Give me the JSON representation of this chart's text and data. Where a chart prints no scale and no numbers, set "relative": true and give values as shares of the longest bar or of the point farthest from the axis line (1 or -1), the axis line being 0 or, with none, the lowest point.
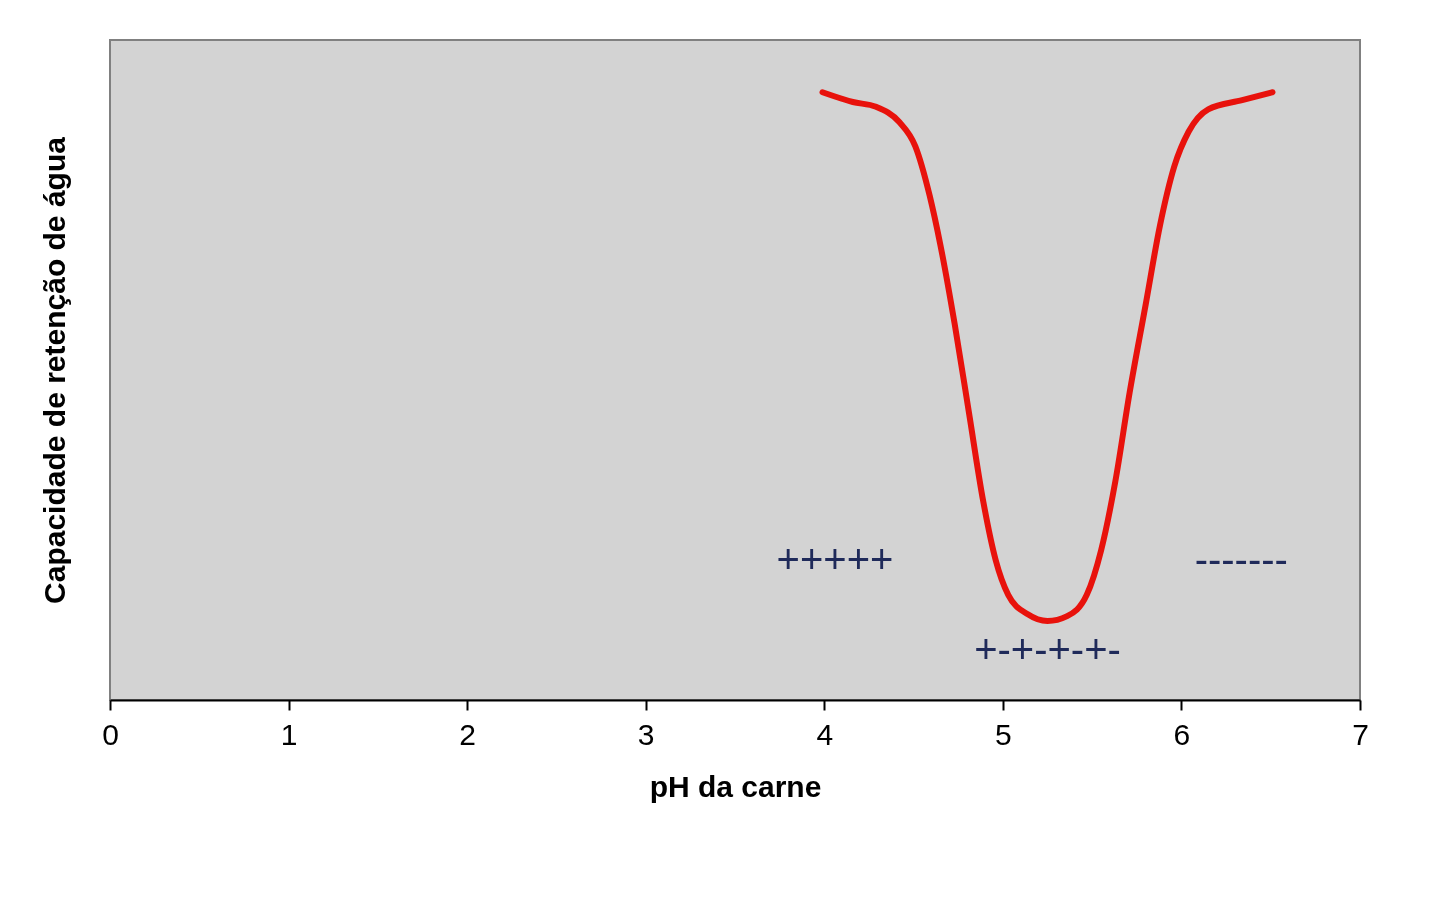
{
  "chart_data": {
    "type": "line",
    "xlabel": "pH da carne",
    "ylabel": "Capacidade de retenção de água",
    "relative": true,
    "xlim": [
      0,
      7
    ],
    "xticks": [
      0,
      1,
      2,
      3,
      4,
      5,
      6,
      7
    ],
    "grid": false,
    "marker": "none",
    "line_style": "solid",
    "series": [
      {
        "color": "#e8120c",
        "x": [
          3.99,
          4.16,
          4.29,
          4.42,
          4.51,
          4.59,
          4.65,
          4.73,
          4.81,
          4.89,
          4.96,
          5.03,
          5.14,
          5.25,
          5.36,
          5.47,
          5.55,
          5.63,
          5.71,
          5.8,
          5.88,
          5.96,
          6.04,
          6.15,
          6.34,
          6.51
        ],
        "values": [
          1.0,
          0.984,
          0.976,
          0.951,
          0.911,
          0.83,
          0.749,
          0.619,
          0.473,
          0.327,
          0.23,
          0.173,
          0.141,
          0.13,
          0.138,
          0.173,
          0.246,
          0.36,
          0.506,
          0.651,
          0.781,
          0.878,
          0.935,
          0.972,
          0.987,
          1.0
        ]
      }
    ],
    "annotations": [
      "+++++",
      "+-+-+-+-",
      "-------"
    ]
  }
}
